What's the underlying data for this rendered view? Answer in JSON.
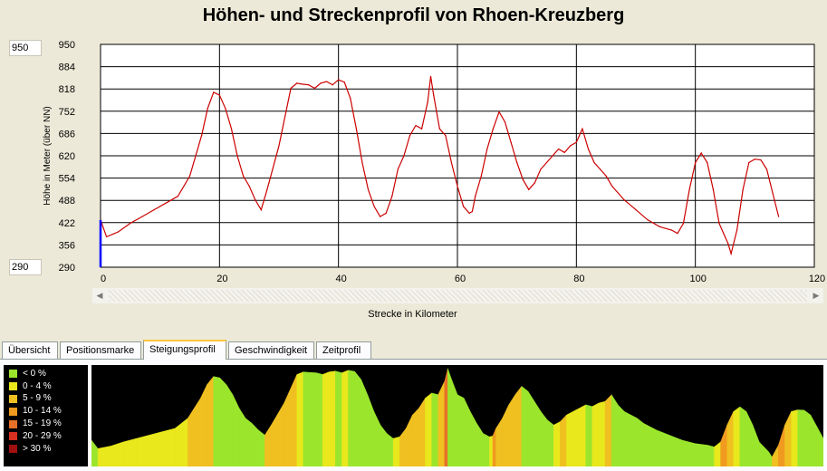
{
  "title": "Höhen- und Streckenprofil von Rhoen-Kreuzberg",
  "side_fields": {
    "max": "950",
    "min": "290"
  },
  "tabs": [
    {
      "label": "Übersicht",
      "active": false
    },
    {
      "label": "Positionsmarke",
      "active": false
    },
    {
      "label": "Steigungsprofil",
      "active": true
    },
    {
      "label": "Geschwindigkeit",
      "active": false
    },
    {
      "label": "Zeitprofil",
      "active": false
    }
  ],
  "legend": [
    {
      "label": "< 0 %",
      "color": "#9be62d"
    },
    {
      "label": "0 - 4 %",
      "color": "#e8e81c"
    },
    {
      "label": "5 - 9 %",
      "color": "#f0c020"
    },
    {
      "label": "10 - 14 %",
      "color": "#f09a20"
    },
    {
      "label": "15 - 19 %",
      "color": "#e87028"
    },
    {
      "label": "20 - 29 %",
      "color": "#d83020"
    },
    {
      "label": "> 30 %",
      "color": "#a01010"
    }
  ],
  "chart_data": {
    "type": "line",
    "xlabel": "Strecke in Kilometer",
    "ylabel": "Höhe in Meter (über NN)",
    "xlim": [
      0,
      120
    ],
    "ylim": [
      290,
      950
    ],
    "x_ticks": [
      "0",
      "20",
      "40",
      "60",
      "80",
      "100",
      "120"
    ],
    "y_ticks": [
      "290",
      "356",
      "422",
      "488",
      "554",
      "620",
      "686",
      "752",
      "818",
      "884",
      "950"
    ],
    "grid": true,
    "line_color": "#cc0000",
    "start_marker_color": "#0000ff",
    "series": [
      {
        "x": [
          0,
          1,
          3,
          5,
          7,
          9,
          11,
          13,
          15,
          17,
          18,
          19,
          20,
          21,
          22,
          23,
          24,
          25,
          26,
          27,
          28,
          30,
          32,
          33,
          34,
          35,
          36,
          37,
          38,
          39,
          40,
          41,
          42,
          43,
          44,
          45,
          46,
          47,
          48,
          49,
          50,
          51,
          52,
          53,
          54,
          55,
          55.5,
          56,
          57,
          58,
          59,
          60,
          61,
          62,
          62.5,
          63,
          64,
          65,
          66,
          67,
          68,
          69,
          70,
          71,
          72,
          73,
          74,
          75,
          76,
          77,
          78,
          79,
          80,
          81,
          82,
          83,
          84,
          85,
          86,
          88,
          90,
          92,
          94,
          96,
          97,
          98,
          99,
          100,
          101,
          102,
          103,
          104,
          105,
          105.5,
          106,
          107,
          108,
          109,
          110,
          111,
          112,
          113,
          114
        ],
        "y": [
          430,
          380,
          395,
          420,
          440,
          460,
          480,
          500,
          560,
          680,
          760,
          808,
          800,
          760,
          700,
          620,
          560,
          530,
          490,
          460,
          520,
          650,
          820,
          835,
          832,
          830,
          820,
          835,
          840,
          830,
          845,
          838,
          790,
          700,
          600,
          520,
          470,
          440,
          450,
          500,
          580,
          620,
          680,
          710,
          700,
          780,
          855,
          800,
          700,
          680,
          600,
          530,
          470,
          450,
          455,
          500,
          560,
          640,
          700,
          750,
          720,
          660,
          600,
          550,
          520,
          540,
          580,
          600,
          620,
          640,
          630,
          650,
          660,
          700,
          640,
          600,
          580,
          560,
          530,
          490,
          460,
          430,
          410,
          400,
          390,
          420,
          520,
          600,
          628,
          600,
          520,
          420,
          380,
          360,
          330,
          400,
          520,
          600,
          610,
          608,
          580,
          510,
          440
        ]
      }
    ]
  }
}
